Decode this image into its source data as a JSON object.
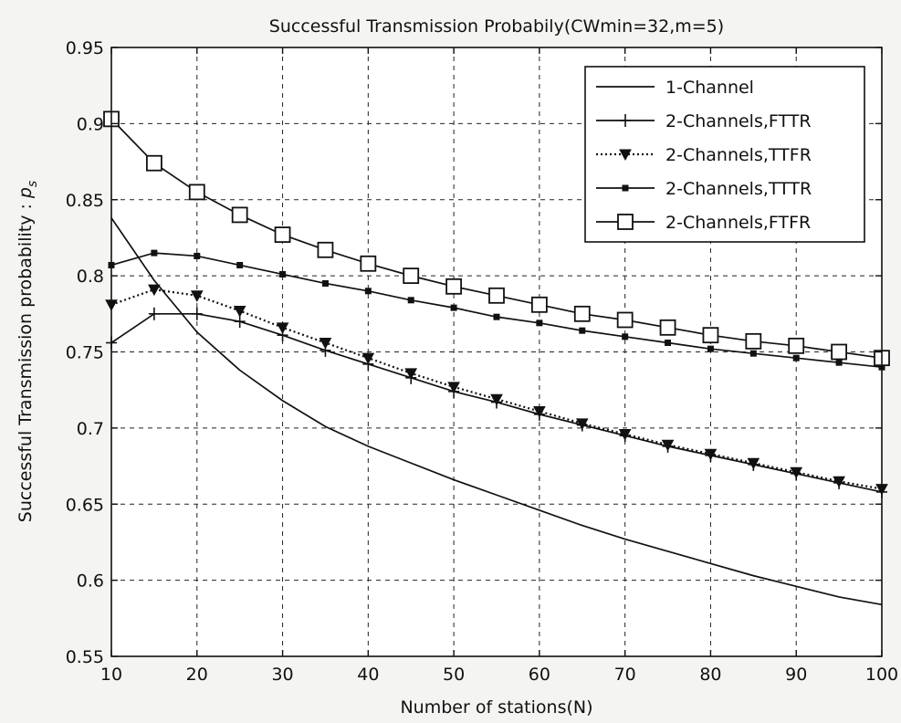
{
  "chart_data": {
    "type": "line",
    "title": "Successful Transmission Probabily(CWmin=32,m=5)",
    "xlabel": "Number of stations(N)",
    "ylabel": "Successful Transmission probability :",
    "ylabel_symbol": "p",
    "ylabel_subscript": "s",
    "xlim": [
      10,
      100
    ],
    "ylim": [
      0.55,
      0.95
    ],
    "xticks": [
      10,
      20,
      30,
      40,
      50,
      60,
      70,
      80,
      90,
      100
    ],
    "yticks": [
      0.55,
      0.6,
      0.65,
      0.7,
      0.75,
      0.8,
      0.85,
      0.9,
      0.95
    ],
    "xtick_labels": [
      "10",
      "20",
      "30",
      "40",
      "50",
      "60",
      "70",
      "80",
      "90",
      "100"
    ],
    "ytick_labels": [
      "0.55",
      "0.6",
      "0.65",
      "0.7",
      "0.75",
      "0.8",
      "0.85",
      "0.9",
      "0.95"
    ],
    "grid": true,
    "grid_style": "dashed",
    "legend_position": "top-right",
    "x": [
      10,
      15,
      20,
      25,
      30,
      35,
      40,
      45,
      50,
      55,
      60,
      65,
      70,
      75,
      80,
      85,
      90,
      95,
      100
    ],
    "series": [
      {
        "name": "1-Channel",
        "marker": "none",
        "style": "solid",
        "color": "#111111",
        "values": [
          0.838,
          0.797,
          0.763,
          0.738,
          0.718,
          0.701,
          0.688,
          0.677,
          0.666,
          0.656,
          0.646,
          0.636,
          0.627,
          0.619,
          0.611,
          0.603,
          0.596,
          0.589,
          0.584
        ]
      },
      {
        "name": "2-Channels,FTTR",
        "marker": "plus",
        "style": "solid",
        "color": "#111111",
        "values": [
          0.756,
          0.775,
          0.775,
          0.77,
          0.761,
          0.751,
          0.742,
          0.733,
          0.724,
          0.717,
          0.709,
          0.702,
          0.695,
          0.688,
          0.682,
          0.676,
          0.67,
          0.664,
          0.658
        ]
      },
      {
        "name": "2-Channels,TTFR",
        "marker": "triangle-down",
        "style": "dotted",
        "color": "#111111",
        "values": [
          0.781,
          0.791,
          0.787,
          0.777,
          0.766,
          0.756,
          0.746,
          0.736,
          0.727,
          0.719,
          0.711,
          0.703,
          0.696,
          0.689,
          0.683,
          0.677,
          0.671,
          0.665,
          0.66
        ]
      },
      {
        "name": "2-Channels,TTTR",
        "marker": "small-square",
        "style": "solid",
        "color": "#111111",
        "values": [
          0.807,
          0.815,
          0.813,
          0.807,
          0.801,
          0.795,
          0.79,
          0.784,
          0.779,
          0.773,
          0.769,
          0.764,
          0.76,
          0.756,
          0.752,
          0.749,
          0.746,
          0.743,
          0.74
        ]
      },
      {
        "name": "2-Channels,FTFR",
        "marker": "open-square",
        "style": "solid",
        "color": "#111111",
        "values": [
          0.903,
          0.874,
          0.855,
          0.84,
          0.827,
          0.817,
          0.808,
          0.8,
          0.793,
          0.787,
          0.781,
          0.775,
          0.771,
          0.766,
          0.761,
          0.757,
          0.754,
          0.75,
          0.746
        ]
      }
    ]
  }
}
